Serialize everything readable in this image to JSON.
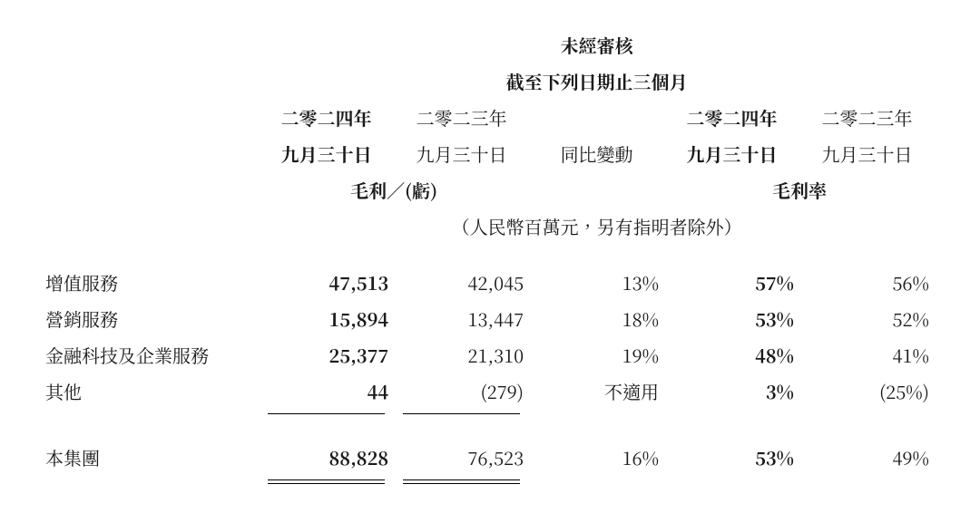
{
  "header": {
    "unaudited": "未經審核",
    "period": "截至下列日期止三個月",
    "year_2024": "二零二四年",
    "year_2023": "二零二三年",
    "date_sep30": "九月三十日",
    "yoy_change": "同比變動",
    "gross_profit_loss": "毛利／(虧)",
    "gross_margin": "毛利率",
    "unit_note": "（人民幣百萬元，另有指明者除外）"
  },
  "rows": {
    "vas": {
      "label": "增值服務",
      "gp2024": "47,513",
      "gp2023": "42,045",
      "yoy": "13%",
      "gm2024": "57%",
      "gm2023": "56%"
    },
    "mkt": {
      "label": "營銷服務",
      "gp2024": "15,894",
      "gp2023": "13,447",
      "yoy": "18%",
      "gm2024": "53%",
      "gm2023": "52%"
    },
    "fintech": {
      "label": "金融科技及企業服務",
      "gp2024": "25,377",
      "gp2023": "21,310",
      "yoy": "19%",
      "gm2024": "48%",
      "gm2023": "41%"
    },
    "other": {
      "label": "其他",
      "gp2024": "44",
      "gp2023": "(279)",
      "yoy": "不適用",
      "gm2024": "3%",
      "gm2023": "(25%)"
    },
    "group": {
      "label": "本集團",
      "gp2024": "88,828",
      "gp2023": "76,523",
      "yoy": "16%",
      "gm2024": "53%",
      "gm2023": "49%"
    }
  },
  "style": {
    "font_size_pt": 20,
    "text_color": "#1a1a1a",
    "background_color": "#ffffff",
    "rule_color": "#000000"
  }
}
